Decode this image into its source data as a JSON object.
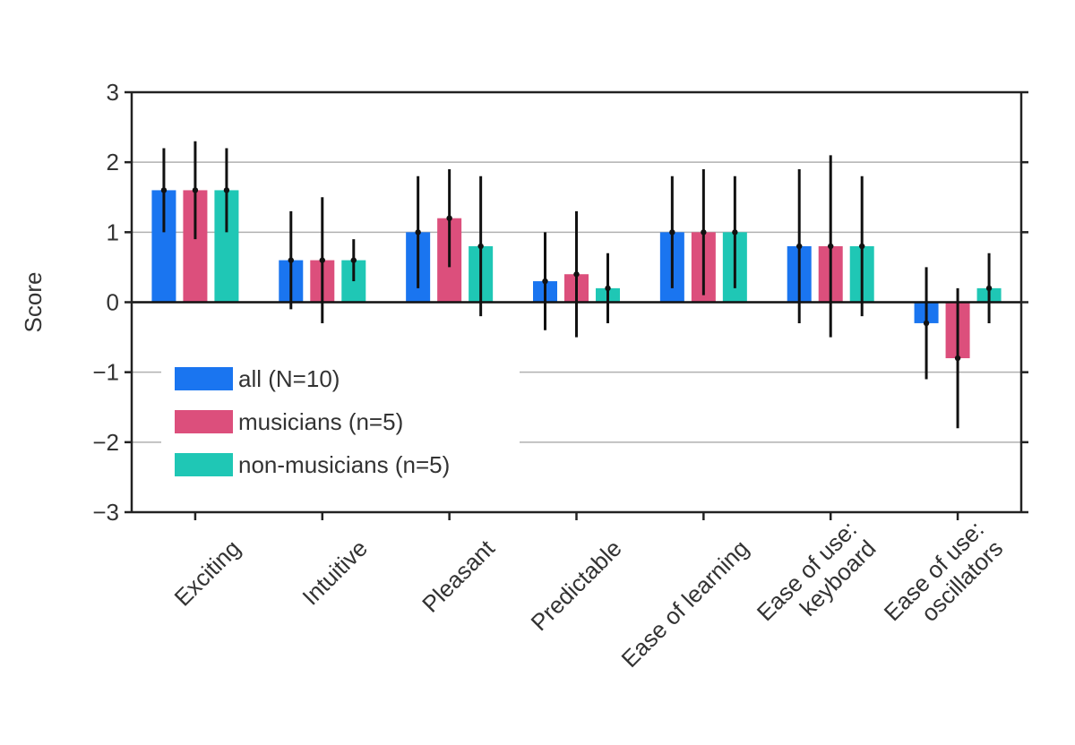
{
  "chart_data": {
    "type": "bar",
    "ylabel": "Score",
    "ylim": [
      -3,
      3
    ],
    "yticks": [
      3,
      2,
      1,
      0,
      -1,
      -2,
      -3
    ],
    "ytick_labels": [
      "3",
      "2",
      "1",
      "0",
      "−1",
      "−2",
      "−3"
    ],
    "grid": true,
    "legend_position": "lower-left",
    "categories": [
      [
        "Exciting"
      ],
      [
        "Intuitive"
      ],
      [
        "Pleasant"
      ],
      [
        "Predictable"
      ],
      [
        "Ease of learning"
      ],
      [
        "Ease of use:",
        "keyboard"
      ],
      [
        "Ease of use:",
        "oscillators"
      ]
    ],
    "series": [
      {
        "name": "all (N=10)",
        "color": "#1a75f0",
        "values": [
          1.6,
          0.6,
          1.0,
          0.3,
          1.0,
          0.8,
          -0.3
        ],
        "err_low": [
          1.0,
          -0.1,
          0.2,
          -0.4,
          0.2,
          -0.3,
          -1.1
        ],
        "err_high": [
          2.2,
          1.3,
          1.8,
          1.0,
          1.8,
          1.9,
          0.5
        ]
      },
      {
        "name": "musicians (n=5)",
        "color": "#dc4f7c",
        "values": [
          1.6,
          0.6,
          1.2,
          0.4,
          1.0,
          0.8,
          -0.8
        ],
        "err_low": [
          0.9,
          -0.3,
          0.5,
          -0.5,
          0.1,
          -0.5,
          -1.8
        ],
        "err_high": [
          2.3,
          1.5,
          1.9,
          1.3,
          1.9,
          2.1,
          0.2
        ]
      },
      {
        "name": "non-musicians (n=5)",
        "color": "#1fc7b5",
        "values": [
          1.6,
          0.6,
          0.8,
          0.2,
          1.0,
          0.8,
          0.2
        ],
        "err_low": [
          1.0,
          0.3,
          -0.2,
          -0.3,
          0.2,
          -0.2,
          -0.3
        ],
        "err_high": [
          2.2,
          0.9,
          1.8,
          0.7,
          1.8,
          1.8,
          0.7
        ]
      }
    ]
  }
}
